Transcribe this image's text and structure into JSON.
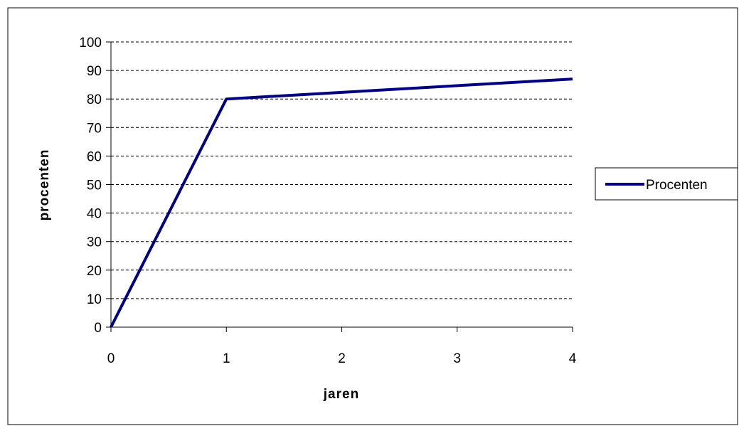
{
  "chart_data": {
    "type": "line",
    "title": "",
    "xlabel": "jaren",
    "ylabel": "procenten",
    "xlim": [
      0,
      4
    ],
    "ylim": [
      0,
      100
    ],
    "xticks": [
      "0",
      "1",
      "2",
      "3",
      "4"
    ],
    "yticks": [
      "0",
      "10",
      "20",
      "30",
      "40",
      "50",
      "60",
      "70",
      "80",
      "90",
      "100"
    ],
    "grid": "horizontal dashed",
    "legend_position": "right",
    "series": [
      {
        "name": "Procenten",
        "color": "#000080",
        "x": [
          0,
          1,
          4
        ],
        "y": [
          0,
          80,
          87
        ]
      }
    ]
  }
}
